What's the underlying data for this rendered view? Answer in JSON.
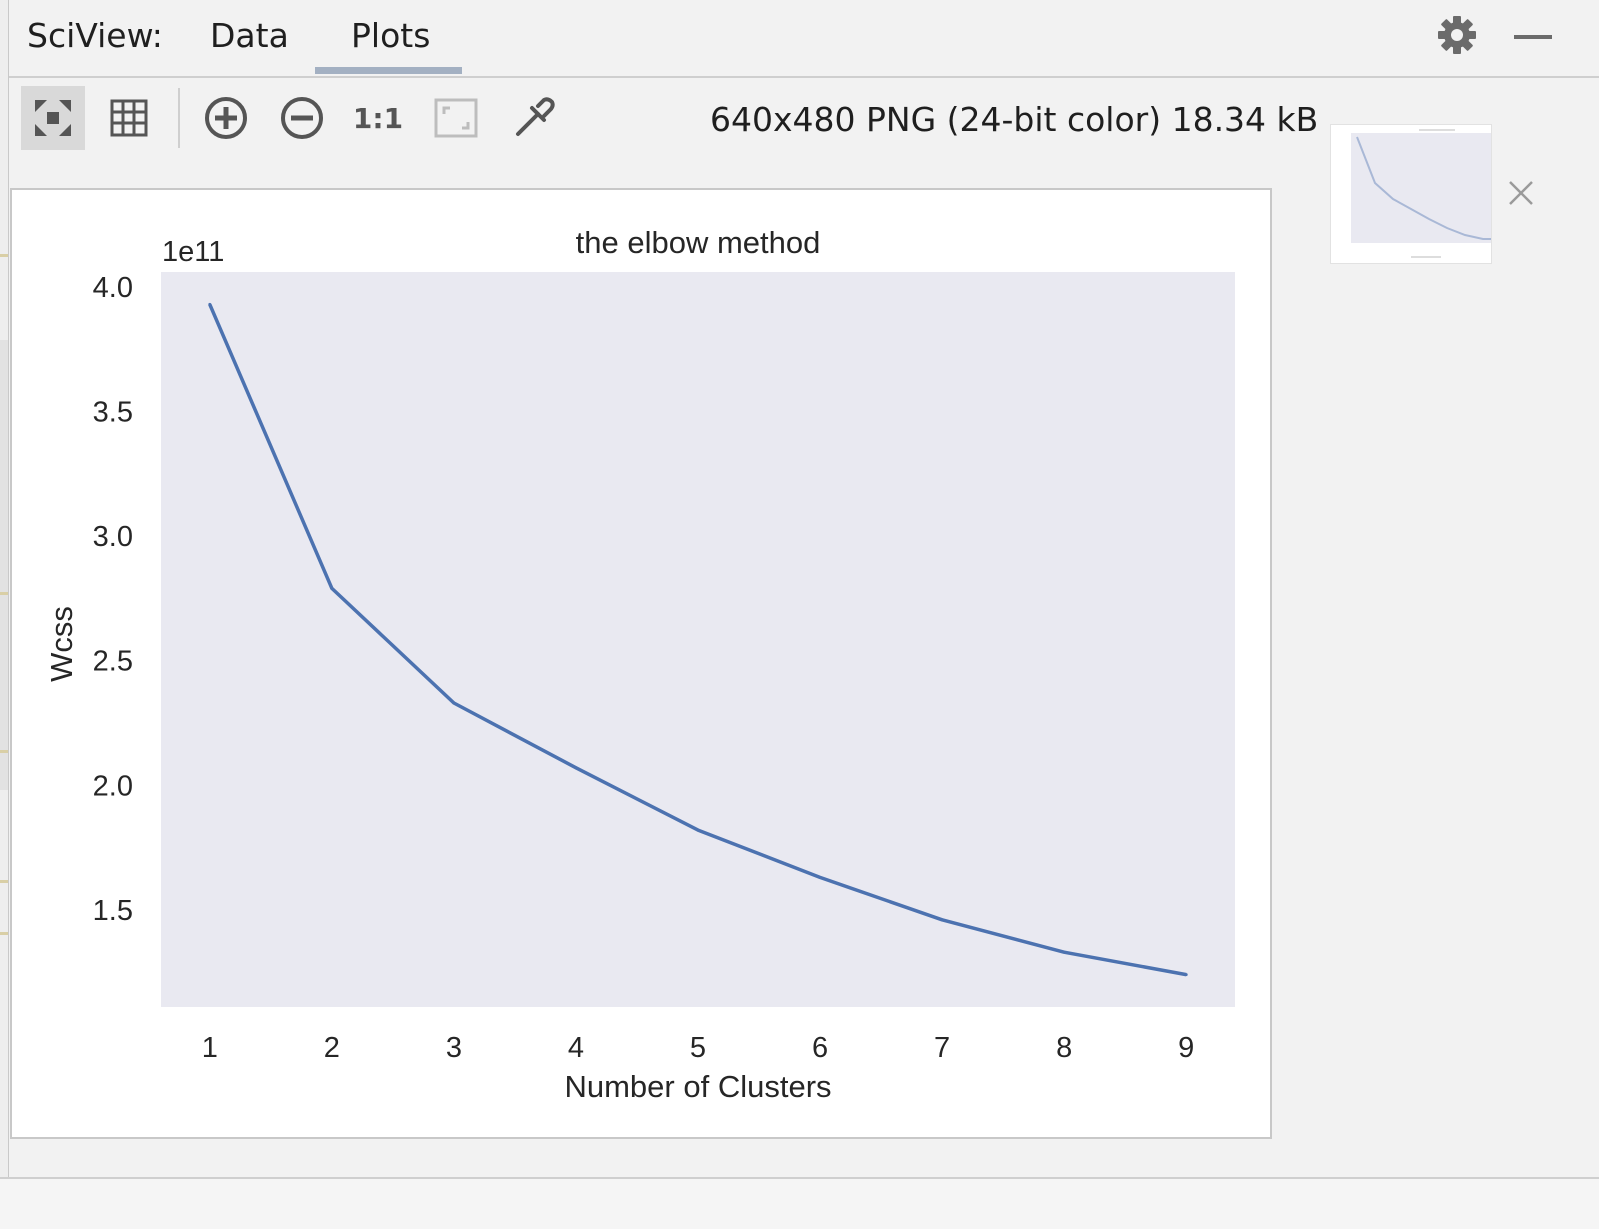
{
  "header": {
    "title": "SciView:",
    "tabs": [
      {
        "label": "Data",
        "active": false
      },
      {
        "label": "Plots",
        "active": true
      }
    ],
    "accent_color": "#a3b0c2"
  },
  "toolbar": {
    "buttons": [
      {
        "icon": "fit-to-window-icon",
        "active": true
      },
      {
        "icon": "grid-icon",
        "active": false
      },
      {
        "icon": "zoom-in-icon",
        "active": false
      },
      {
        "icon": "zoom-out-icon",
        "active": false
      },
      {
        "icon": "actual-size-icon",
        "label": "1:1",
        "active": false
      },
      {
        "icon": "fit-frame-icon",
        "active": false
      },
      {
        "icon": "color-picker-icon",
        "active": false
      }
    ],
    "image_info": "640x480 PNG (24-bit color) 18.34 kB"
  },
  "chart_data": {
    "type": "line",
    "title": "the elbow method",
    "xlabel": "Number of Clusters",
    "ylabel": "Wcss",
    "y_offset_label": "1e11",
    "x": [
      1,
      2,
      3,
      4,
      5,
      6,
      7,
      8,
      9
    ],
    "y": [
      3.93,
      2.79,
      2.33,
      2.07,
      1.82,
      1.63,
      1.46,
      1.33,
      1.24
    ],
    "xticks": [
      "1",
      "2",
      "3",
      "4",
      "5",
      "6",
      "7",
      "8",
      "9"
    ],
    "yticks": [
      "1.5",
      "2.0",
      "2.5",
      "3.0",
      "3.5",
      "4.0"
    ],
    "ytick_values": [
      1.5,
      2.0,
      2.5,
      3.0,
      3.5,
      4.0
    ],
    "xlim": [
      0.6,
      9.4
    ],
    "ylim": [
      1.11,
      4.06
    ],
    "grid": false,
    "line_color": "#4c72b0",
    "plot_bg": "#e9e9f1"
  },
  "thumbnail": {
    "icon": "plot-thumbnail"
  },
  "close_icon": "close-icon"
}
